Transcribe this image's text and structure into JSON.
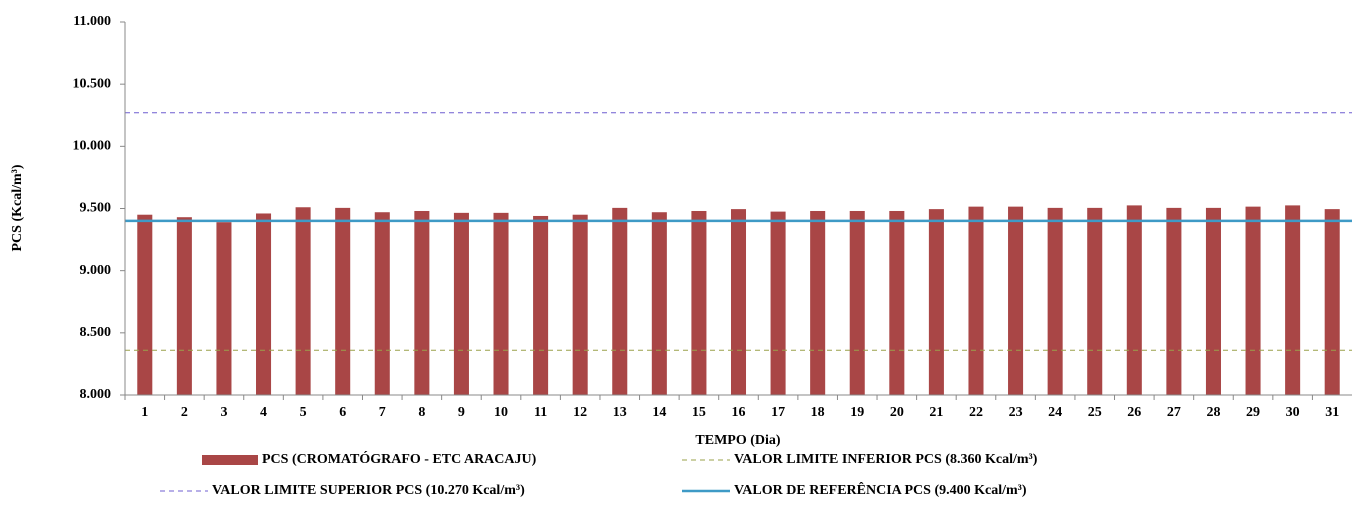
{
  "chart_data": {
    "type": "bar",
    "x_label": "TEMPO (Dia)",
    "y_label": "PCS (Kcal/m³)",
    "categories": [
      "1",
      "2",
      "3",
      "4",
      "5",
      "6",
      "7",
      "8",
      "9",
      "10",
      "11",
      "12",
      "13",
      "14",
      "15",
      "16",
      "17",
      "18",
      "19",
      "20",
      "21",
      "22",
      "23",
      "24",
      "25",
      "26",
      "27",
      "28",
      "29",
      "30",
      "31"
    ],
    "series": [
      {
        "name": "PCS (CROMATÓGRAFO - ETC ARACAJU)",
        "color": "#a94646",
        "values": [
          9450,
          9430,
          9390,
          9460,
          9510,
          9505,
          9470,
          9480,
          9465,
          9465,
          9440,
          9450,
          9505,
          9470,
          9480,
          9495,
          9475,
          9480,
          9480,
          9480,
          9495,
          9515,
          9515,
          9505,
          9505,
          9525,
          9505,
          9505,
          9515,
          9525,
          9495
        ]
      }
    ],
    "lines": [
      {
        "name": "VALOR LIMITE INFERIOR PCS (8.360 Kcal/m³)",
        "value": 8360,
        "color": "#9aa04a",
        "dashed": true
      },
      {
        "name": "VALOR LIMITE SUPERIOR PCS (10.270 Kcal/m³)",
        "value": 10270,
        "color": "#6f5fd0",
        "dashed": true
      },
      {
        "name": "VALOR DE REFERÊNCIA PCS (9.400 Kcal/m³)",
        "value": 9400,
        "color": "#3e9ac6",
        "dashed": false
      }
    ],
    "ylim": [
      8000,
      11000
    ],
    "yticks": [
      {
        "value": 8000,
        "label": "8.000"
      },
      {
        "value": 8500,
        "label": "8.500"
      },
      {
        "value": 9000,
        "label": "9.000"
      },
      {
        "value": 9500,
        "label": "9.500"
      },
      {
        "value": 10000,
        "label": "10.000"
      },
      {
        "value": 10500,
        "label": "10.500"
      },
      {
        "value": 11000,
        "label": "11.000"
      }
    ],
    "grid": false
  }
}
